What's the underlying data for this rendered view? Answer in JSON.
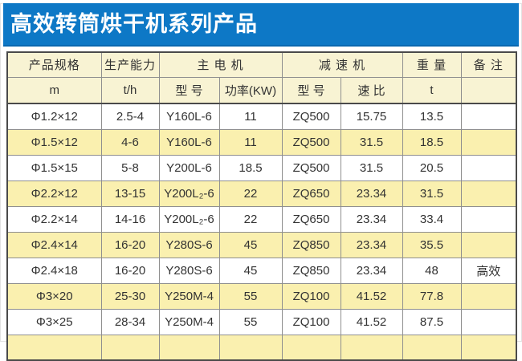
{
  "title": "高效转筒烘干机系列产品",
  "colors": {
    "title_blue": "#0d78c6",
    "header_cream": "#f8f3d3",
    "stripe_yellow": "#faf0af"
  },
  "table": {
    "header_row1": [
      {
        "label": "产品规格",
        "colspan": 1
      },
      {
        "label": "生产能力",
        "colspan": 1
      },
      {
        "label": "主  电  机",
        "colspan": 2
      },
      {
        "label": "减   速   机",
        "colspan": 2
      },
      {
        "label": "重 量",
        "colspan": 1
      },
      {
        "label": "备 注",
        "colspan": 1
      }
    ],
    "header_row2": [
      "m",
      "t/h",
      "型 号",
      "功率(KW)",
      "型 号",
      "速 比",
      "t",
      ""
    ],
    "rows": [
      [
        "Φ1.2×12",
        "2.5-4",
        "Y160L-6",
        "11",
        "ZQ500",
        "15.75",
        "13.5",
        ""
      ],
      [
        "Φ1.5×12",
        "4-6",
        "Y160L-6",
        "11",
        "ZQ500",
        "31.5",
        "18.5",
        ""
      ],
      [
        "Φ1.5×15",
        "5-8",
        "Y200L-6",
        "18.5",
        "ZQ500",
        "31.5",
        "20.5",
        ""
      ],
      [
        "Φ2.2×12",
        "13-15",
        "Y200L₂-6",
        "22",
        "ZQ650",
        "23.34",
        "31.5",
        ""
      ],
      [
        "Φ2.2×14",
        "14-16",
        "Y200L₂-6",
        "22",
        "ZQ650",
        "23.34",
        "33.4",
        ""
      ],
      [
        "Φ2.4×14",
        "16-20",
        "Y280S-6",
        "45",
        "ZQ850",
        "23.34",
        "35.5",
        ""
      ],
      [
        "Φ2.4×18",
        "16-20",
        "Y280S-6",
        "45",
        "ZQ850",
        "23.34",
        "48",
        "高效"
      ],
      [
        "Φ3×20",
        "25-30",
        "Y250M-4",
        "55",
        "ZQ100",
        "41.52",
        "77.8",
        ""
      ],
      [
        "Φ3×25",
        "28-34",
        "Y250M-4",
        "55",
        "ZQ100",
        "41.52",
        "87.5",
        ""
      ],
      [
        "",
        "",
        "",
        "",
        "",
        "",
        "",
        ""
      ]
    ]
  }
}
